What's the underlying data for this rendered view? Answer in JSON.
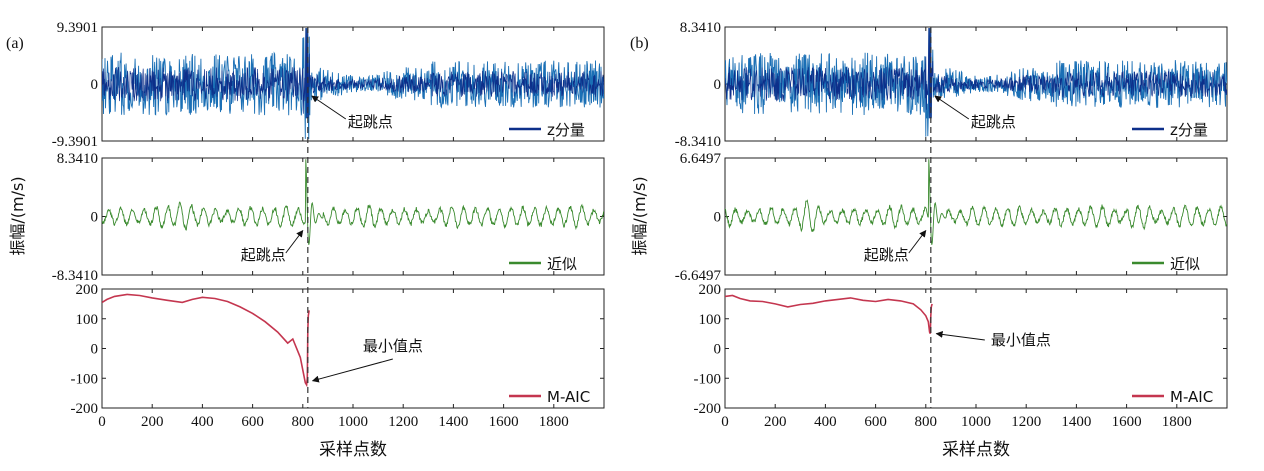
{
  "colors": {
    "z": "#1a6fb5",
    "z_dark": "#0d2f8a",
    "approx": "#3a8a2e",
    "aic": "#c4364f"
  },
  "chart_data": [
    {
      "panel_label": "(a)",
      "type": "line",
      "x_tick_labels": [
        "0",
        "200",
        "400",
        "600",
        "800",
        "1000",
        "1200",
        "1400",
        "1600",
        "1800"
      ],
      "xlim": [
        0,
        2000
      ],
      "xlabel": "采样点数",
      "ylabel": "振幅/(m/s)",
      "onset_x": 820,
      "rows": [
        {
          "kind": "z",
          "ylim": [
            -9.3901,
            9.3901
          ],
          "y_tick_labels": [
            "9.3901",
            "0",
            "-9.3901"
          ],
          "legend": "z分量",
          "annotation": "起跳点"
        },
        {
          "kind": "approx",
          "ylim": [
            -8.341,
            8.341
          ],
          "y_tick_labels": [
            "8.3410",
            "0",
            "-8.3410"
          ],
          "legend": "近似",
          "annotation": "起跳点"
        },
        {
          "kind": "aic",
          "ylim": [
            -200,
            200
          ],
          "y_tick_labels": [
            "200",
            "100",
            "0",
            "-100",
            "-200"
          ],
          "legend": "M-AIC",
          "annotation": "最小值点",
          "series": {
            "x": [
              0,
              20,
              50,
              100,
              150,
              200,
              260,
              320,
              360,
              400,
              450,
              500,
              550,
              600,
              650,
              700,
              740,
              760,
              790,
              810,
              815,
              818,
              820,
              822,
              825
            ],
            "y": [
              155,
              165,
              175,
              182,
              178,
              170,
              162,
              155,
              165,
              172,
              168,
              158,
              140,
              118,
              90,
              55,
              18,
              32,
              -30,
              -115,
              -122,
              -100,
              60,
              110,
              128
            ]
          }
        }
      ]
    },
    {
      "panel_label": "(b)",
      "type": "line",
      "x_tick_labels": [
        "0",
        "200",
        "400",
        "600",
        "800",
        "1000",
        "1200",
        "1400",
        "1600",
        "1800"
      ],
      "xlim": [
        0,
        2000
      ],
      "xlabel": "采样点数",
      "ylabel": "振幅/(m/s)",
      "onset_x": 820,
      "rows": [
        {
          "kind": "z",
          "ylim": [
            -8.341,
            8.341
          ],
          "y_tick_labels": [
            "8.3410",
            "0",
            "-8.3410"
          ],
          "legend": "z分量",
          "annotation": "起跳点"
        },
        {
          "kind": "approx",
          "ylim": [
            -6.6497,
            6.6497
          ],
          "y_tick_labels": [
            "6.6497",
            "0",
            "-6.6497"
          ],
          "legend": "近似",
          "annotation": "起跳点"
        },
        {
          "kind": "aic",
          "ylim": [
            -200,
            200
          ],
          "y_tick_labels": [
            "200",
            "100",
            "0",
            "-100",
            "-200"
          ],
          "legend": "M-AIC",
          "annotation": "最小值点",
          "series": {
            "x": [
              0,
              30,
              60,
              100,
              150,
              200,
              250,
              300,
              350,
              400,
              450,
              500,
              550,
              600,
              650,
              700,
              750,
              780,
              800,
              810,
              815,
              818,
              820,
              822,
              825
            ],
            "y": [
              175,
              178,
              168,
              160,
              158,
              150,
              140,
              148,
              152,
              160,
              165,
              170,
              162,
              158,
              165,
              160,
              150,
              130,
              110,
              90,
              55,
              50,
              110,
              140,
              150
            ]
          }
        }
      ]
    }
  ]
}
